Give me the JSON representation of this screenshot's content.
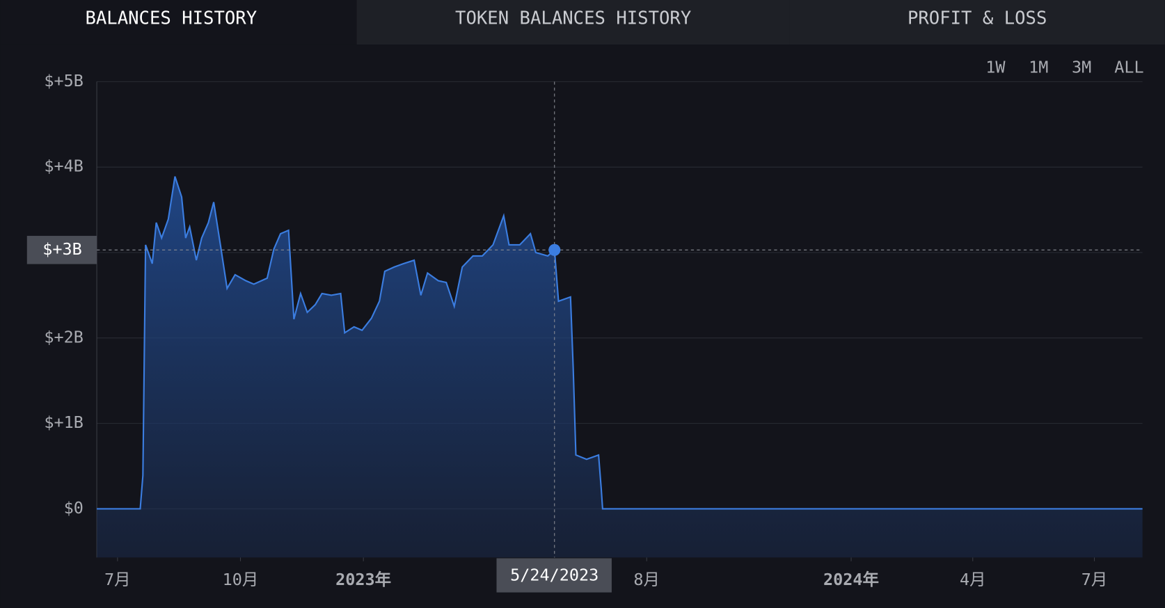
{
  "tabs": [
    {
      "label": "BALANCES HISTORY",
      "active": true
    },
    {
      "label": "TOKEN BALANCES HISTORY",
      "active": false
    },
    {
      "label": "PROFIT & LOSS",
      "active": false
    }
  ],
  "ranges": [
    {
      "label": "1W",
      "active": false
    },
    {
      "label": "1M",
      "active": false
    },
    {
      "label": "3M",
      "active": false
    },
    {
      "label": "ALL",
      "active": true
    }
  ],
  "chart_data": {
    "type": "area",
    "x": [
      -15.5,
      17,
      19,
      21,
      26,
      29,
      33,
      38,
      43,
      48,
      51,
      54,
      59,
      63,
      68,
      72,
      77,
      82,
      88,
      96,
      102,
      112,
      117,
      122,
      128,
      132,
      137,
      142,
      148,
      153,
      160,
      167,
      170,
      177,
      183,
      190,
      196,
      200,
      207,
      214,
      222,
      227,
      232,
      240,
      246,
      252,
      258,
      266,
      273,
      281,
      289,
      293,
      301,
      309,
      313,
      322,
      327,
      330,
      339,
      341,
      343,
      351,
      360,
      362,
      363,
      767
    ],
    "series": [
      {
        "color": "#3b7de0",
        "values": [
          0,
          0,
          0.39,
          3.09,
          2.87,
          3.35,
          3.17,
          3.39,
          3.89,
          3.65,
          3.17,
          3.3,
          2.91,
          3.17,
          3.35,
          3.59,
          3.09,
          2.58,
          2.74,
          2.67,
          2.63,
          2.7,
          3.04,
          3.22,
          3.26,
          2.22,
          2.52,
          2.3,
          2.39,
          2.52,
          2.5,
          2.52,
          2.06,
          2.13,
          2.09,
          2.23,
          2.43,
          2.78,
          2.83,
          2.87,
          2.91,
          2.5,
          2.76,
          2.67,
          2.65,
          2.37,
          2.83,
          2.96,
          2.96,
          3.09,
          3.43,
          3.09,
          3.09,
          3.22,
          3.0,
          2.96,
          3.03,
          2.43,
          2.48,
          1.65,
          0.63,
          0.58,
          0.63,
          0.23,
          0,
          0
        ]
      }
    ],
    "xlim": [
      -15.5,
      767
    ],
    "ylim": [
      -0.57,
      5
    ],
    "xticks": [
      {
        "value": 0,
        "label": "7月"
      },
      {
        "value": 92,
        "label": "10月"
      },
      {
        "value": 184,
        "label": "2023年",
        "emphasis": true
      },
      {
        "value": 396,
        "label": "8月"
      },
      {
        "value": 549,
        "label": "2024年",
        "emphasis": true
      },
      {
        "value": 640,
        "label": "4月"
      },
      {
        "value": 731,
        "label": "7月"
      }
    ],
    "yticks": [
      {
        "value": 0,
        "label": "$0"
      },
      {
        "value": 1,
        "label": "$+1B"
      },
      {
        "value": 2,
        "label": "$+2B"
      },
      {
        "value": 3,
        "label": "$+3B"
      },
      {
        "value": 4,
        "label": "$+4B"
      },
      {
        "value": 5,
        "label": "$+5B"
      }
    ],
    "grid": true,
    "crosshair": {
      "index": 56,
      "x_label": "5/24/2023",
      "y_label": "$+3B"
    }
  }
}
